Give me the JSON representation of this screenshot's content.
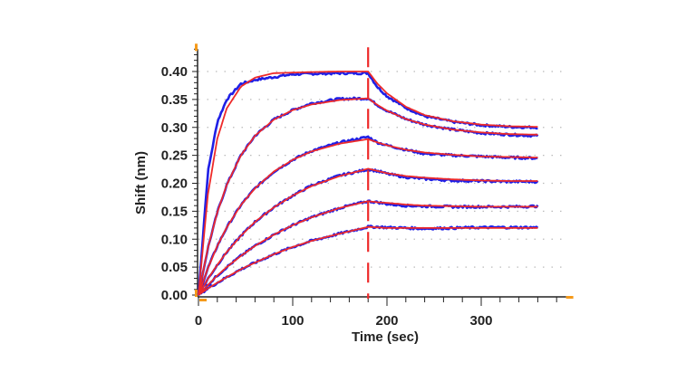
{
  "chart_data": {
    "type": "line",
    "title": "",
    "xlabel": "Time (sec)",
    "ylabel": "Shift (nm)",
    "xlim": [
      0,
      390
    ],
    "ylim": [
      0,
      0.44
    ],
    "x_ticks": [
      "0",
      "100",
      "200",
      "300"
    ],
    "y_ticks": [
      "0.00",
      "0.05",
      "0.10",
      "0.15",
      "0.20",
      "0.25",
      "0.30",
      "0.35",
      "0.40"
    ],
    "grid": "horizontal dotted",
    "legend": "none",
    "dissociation_start": 180,
    "colors": {
      "measured": "#1f1fe6",
      "fit": "#ee2a2a",
      "marker": "#f59a1a",
      "axis": "#222222"
    },
    "x": [
      0,
      10,
      20,
      30,
      45,
      60,
      80,
      100,
      120,
      150,
      180,
      190,
      200,
      220,
      240,
      270,
      300,
      330,
      360
    ],
    "series": [
      {
        "fit": [
          0,
          0.18,
          0.28,
          0.334,
          0.373,
          0.389,
          0.397,
          0.398,
          0.399,
          0.4,
          0.4,
          0.378,
          0.361,
          0.337,
          0.322,
          0.311,
          0.305,
          0.302,
          0.301
        ],
        "measured": [
          0,
          0.22,
          0.31,
          0.35,
          0.378,
          0.385,
          0.39,
          0.395,
          0.396,
          0.397,
          0.397,
          0.372,
          0.356,
          0.335,
          0.32,
          0.31,
          0.304,
          0.301,
          0.3
        ]
      },
      {
        "fit": [
          0,
          0.084,
          0.148,
          0.197,
          0.25,
          0.285,
          0.314,
          0.331,
          0.341,
          0.349,
          0.352,
          0.34,
          0.33,
          0.315,
          0.305,
          0.296,
          0.291,
          0.288,
          0.287
        ],
        "measured": [
          0,
          0.084,
          0.148,
          0.197,
          0.25,
          0.285,
          0.314,
          0.331,
          0.343,
          0.351,
          0.352,
          0.34,
          0.33,
          0.315,
          0.305,
          0.296,
          0.29,
          0.287,
          0.285
        ]
      },
      {
        "fit": [
          0,
          0.048,
          0.088,
          0.121,
          0.161,
          0.191,
          0.221,
          0.242,
          0.257,
          0.271,
          0.279,
          0.273,
          0.268,
          0.26,
          0.255,
          0.251,
          0.248,
          0.247,
          0.246
        ],
        "measured": [
          0,
          0.048,
          0.088,
          0.121,
          0.161,
          0.191,
          0.221,
          0.242,
          0.258,
          0.273,
          0.283,
          0.273,
          0.268,
          0.26,
          0.253,
          0.25,
          0.248,
          0.246,
          0.245
        ]
      },
      {
        "fit": [
          0,
          0.029,
          0.054,
          0.077,
          0.106,
          0.131,
          0.157,
          0.178,
          0.195,
          0.213,
          0.226,
          0.222,
          0.218,
          0.213,
          0.21,
          0.207,
          0.205,
          0.204,
          0.204
        ],
        "measured": [
          0,
          0.029,
          0.054,
          0.077,
          0.106,
          0.131,
          0.157,
          0.178,
          0.196,
          0.214,
          0.225,
          0.222,
          0.217,
          0.211,
          0.208,
          0.205,
          0.204,
          0.203,
          0.203
        ]
      },
      {
        "fit": [
          0,
          0.018,
          0.035,
          0.05,
          0.07,
          0.088,
          0.108,
          0.125,
          0.139,
          0.156,
          0.168,
          0.166,
          0.165,
          0.162,
          0.16,
          0.159,
          0.158,
          0.158,
          0.158
        ],
        "measured": [
          0,
          0.018,
          0.035,
          0.05,
          0.07,
          0.088,
          0.108,
          0.125,
          0.139,
          0.156,
          0.168,
          0.166,
          0.163,
          0.16,
          0.159,
          0.158,
          0.158,
          0.158,
          0.159
        ]
      },
      {
        "fit": [
          0,
          0.012,
          0.022,
          0.032,
          0.046,
          0.058,
          0.073,
          0.086,
          0.097,
          0.11,
          0.122,
          0.121,
          0.12,
          0.12,
          0.12,
          0.12,
          0.12,
          0.12,
          0.12
        ],
        "measured": [
          0,
          0.012,
          0.022,
          0.032,
          0.046,
          0.058,
          0.073,
          0.086,
          0.097,
          0.11,
          0.122,
          0.122,
          0.121,
          0.12,
          0.119,
          0.12,
          0.121,
          0.121,
          0.121
        ]
      }
    ]
  }
}
